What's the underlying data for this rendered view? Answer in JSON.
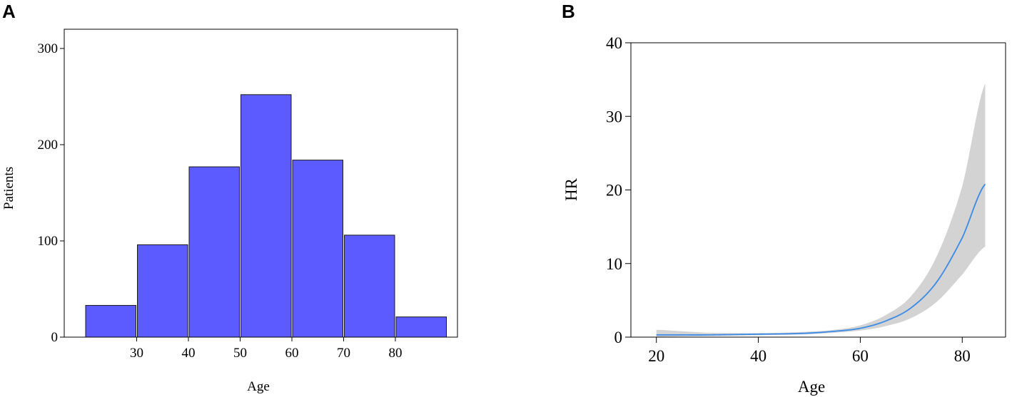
{
  "chart_data": [
    {
      "panel": "A",
      "type": "bar",
      "xlabel": "Age",
      "ylabel": "Patients",
      "ylim": [
        0,
        320
      ],
      "xlim": [
        16,
        92
      ],
      "yticks": [
        0,
        100,
        200,
        300
      ],
      "xticks": [
        30,
        40,
        50,
        60,
        70,
        80
      ],
      "bins": [
        {
          "start": 20,
          "end": 30,
          "value": 33
        },
        {
          "start": 30,
          "end": 40,
          "value": 96
        },
        {
          "start": 40,
          "end": 50,
          "value": 177
        },
        {
          "start": 50,
          "end": 60,
          "value": 252
        },
        {
          "start": 60,
          "end": 70,
          "value": 184
        },
        {
          "start": 70,
          "end": 80,
          "value": 106
        },
        {
          "start": 80,
          "end": 90,
          "value": 21
        }
      ],
      "colors": {
        "bar": "#5b5bff",
        "edge": "#1a1a1a",
        "frame": "#000000"
      }
    },
    {
      "panel": "B",
      "type": "line",
      "xlabel": "Age",
      "ylabel": "HR",
      "ylim": [
        0,
        40
      ],
      "xlim": [
        15,
        88.5
      ],
      "yticks": [
        0,
        10,
        20,
        30,
        40
      ],
      "xticks": [
        20,
        40,
        60,
        80
      ],
      "series": [
        {
          "x": [
            20,
            25,
            30,
            35,
            40,
            45,
            50,
            55,
            60,
            65,
            70,
            75,
            80,
            84.5
          ],
          "y": [
            0.3,
            0.3,
            0.3,
            0.35,
            0.4,
            0.45,
            0.55,
            0.8,
            1.2,
            2.2,
            4.0,
            7.5,
            13.5,
            20.8
          ],
          "lower": [
            0.05,
            0.1,
            0.15,
            0.2,
            0.25,
            0.3,
            0.4,
            0.6,
            0.9,
            1.5,
            2.6,
            4.8,
            8.5,
            12.3
          ],
          "upper": [
            1.0,
            0.8,
            0.6,
            0.55,
            0.55,
            0.6,
            0.75,
            1.0,
            1.6,
            3.0,
            5.6,
            11.0,
            20.5,
            34.5
          ]
        }
      ],
      "colors": {
        "line": "#3a8be8",
        "band": "#d3d3d3",
        "frame": "#000000"
      }
    }
  ]
}
